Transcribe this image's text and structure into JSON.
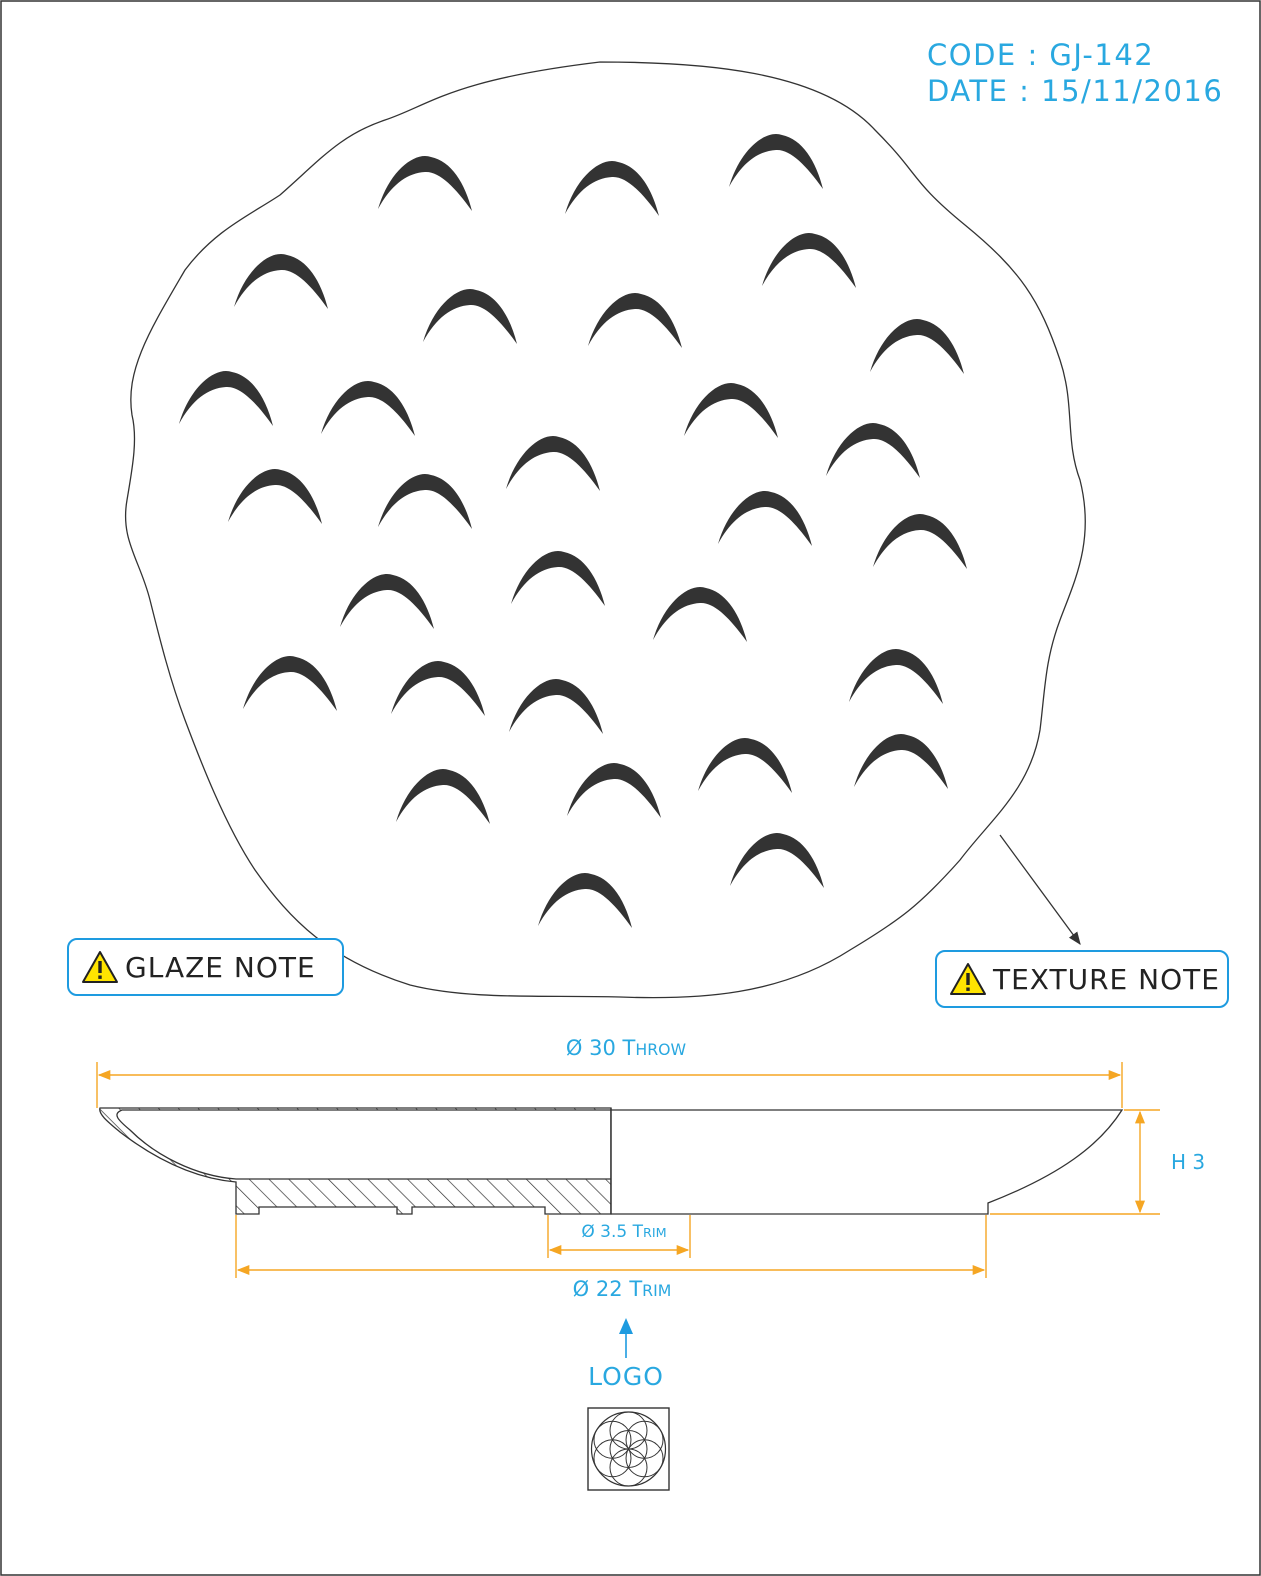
{
  "header": {
    "code_line": "CODE : GJ-142",
    "date_line": "DATE : 15/11/2016"
  },
  "callouts": {
    "glaze_note": "GLAZE NOTE",
    "texture_note": "TEXTURE NOTE"
  },
  "dimensions": {
    "throw_diameter": {
      "symbol": "Ø",
      "value": "30",
      "word_first": "T",
      "word_rest": "HROW"
    },
    "height": "H 3",
    "foot_inner_trim": {
      "symbol": "Ø",
      "value": "3.5",
      "word_first": "T",
      "word_rest": "RIM"
    },
    "foot_outer_trim": {
      "symbol": "Ø",
      "value": "22",
      "word_first": "T",
      "word_rest": "RIM"
    }
  },
  "logo": {
    "label": "LOGO",
    "icon": "flower-of-life-icon"
  },
  "colors": {
    "annotation_text": "#29a8e0",
    "callout_border": "#1e9be0",
    "dimension_lines": "#f5a623",
    "warning_fill": "#ffe400",
    "outline": "#333333",
    "texture_marks": "#333333"
  }
}
